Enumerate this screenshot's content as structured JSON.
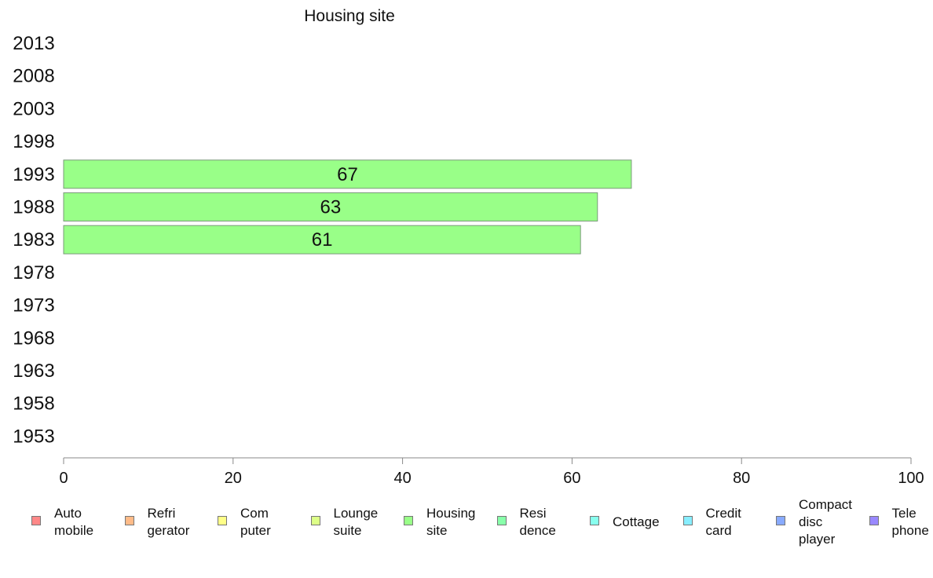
{
  "chart_data": {
    "type": "bar",
    "orientation": "horizontal",
    "title": "Housing site",
    "categories": [
      "2013",
      "2008",
      "2003",
      "1998",
      "1993",
      "1988",
      "1983",
      "1978",
      "1973",
      "1968",
      "1963",
      "1958",
      "1953"
    ],
    "series": [
      {
        "name": "Housing site",
        "color": "#99ff88",
        "values": [
          null,
          null,
          null,
          null,
          67,
          63,
          61,
          null,
          null,
          null,
          null,
          null,
          null
        ],
        "data_labels": [
          "",
          "",
          "",
          "",
          "67",
          "63",
          "61",
          "",
          "",
          "",
          "",
          "",
          ""
        ]
      }
    ],
    "xlim": [
      0,
      100
    ],
    "x_ticks": [
      "0",
      "20",
      "40",
      "60",
      "80",
      "100"
    ],
    "grid": false,
    "legend_placement": "bottom"
  },
  "legend": {
    "items": [
      {
        "label": "Auto\nmobile",
        "color": "#ff8888"
      },
      {
        "label": "Refri\ngerator",
        "color": "#ffbb88"
      },
      {
        "label": "Com\nputer",
        "color": "#ffff88"
      },
      {
        "label": "Lounge\nsuite",
        "color": "#ddff88"
      },
      {
        "label": "Housing\nsite",
        "color": "#99ff88"
      },
      {
        "label": "Resi\ndence",
        "color": "#88ffaa"
      },
      {
        "label": "Cottage",
        "color": "#88ffee"
      },
      {
        "label": "Credit\ncard",
        "color": "#88eeff"
      },
      {
        "label": "Compact\ndisc\nplayer",
        "color": "#88aaff"
      },
      {
        "label": "Tele\nphone",
        "color": "#9988ff"
      }
    ]
  }
}
